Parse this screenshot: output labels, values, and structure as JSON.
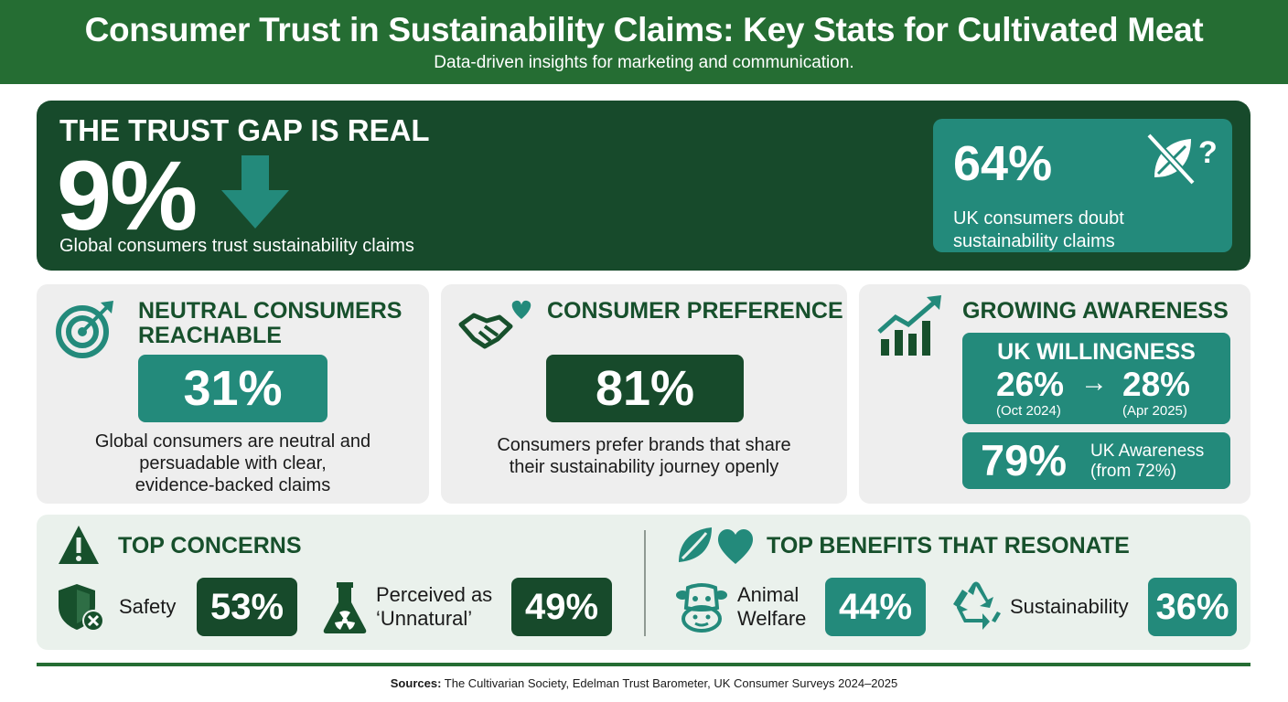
{
  "header": {
    "title": "Consumer Trust in Sustainability Claims: Key Stats for Cultivated Meat",
    "subtitle": "Data-driven insights for marketing and communication."
  },
  "trust_gap": {
    "heading": "THE TRUST GAP IS REAL",
    "stat": "9%",
    "description": "Global consumers trust sustainability claims",
    "side_stat": "64%",
    "side_description": "UK consumers doubt sustainability claims",
    "side_icon_glyph": "?"
  },
  "neutral": {
    "title_line1": "NEUTRAL CONSUMERS",
    "title_line2": "REACHABLE",
    "stat": "31%",
    "desc_line1": "Global consumers are neutral and",
    "desc_line2": "persuadable with clear,",
    "desc_line3": "evidence-backed claims"
  },
  "preference": {
    "title": "CONSUMER PREFERENCE",
    "stat": "81%",
    "desc_line1": "Consumers prefer brands that share",
    "desc_line2": "their sustainability journey openly"
  },
  "awareness": {
    "title": "GROWING AWARENESS",
    "willingness_label": "UK WILLINGNESS",
    "willingness_from": "26%",
    "arrow": "→",
    "willingness_to": "28%",
    "from_date": "(Oct 2024)",
    "to_date": "(Apr 2025)",
    "awareness_stat": "79%",
    "awareness_label": "UK Awareness",
    "awareness_note": "(from 72%)"
  },
  "concerns": {
    "title": "TOP CONCERNS",
    "items": [
      {
        "label_line1": "Safety",
        "label_line2": "",
        "value": "53%"
      },
      {
        "label_line1": "Perceived as",
        "label_line2": "‘Unnatural’",
        "value": "49%"
      }
    ]
  },
  "benefits": {
    "title": "TOP BENEFITS THAT RESONATE",
    "items": [
      {
        "label_line1": "Animal",
        "label_line2": "Welfare",
        "value": "44%"
      },
      {
        "label_line1": "Sustainability",
        "label_line2": "",
        "value": "36%"
      }
    ]
  },
  "footer": {
    "sources_label": "Sources:",
    "sources_text": " The Cultivarian Society, Edelman Trust Barometer, UK Consumer Surveys 2024–2025"
  },
  "colors": {
    "header_green": "#256d33",
    "dark_green": "#174a2b",
    "teal": "#238a7b",
    "panel_gray": "#eeeeee",
    "bottom_panel": "#eaf1ec"
  },
  "icons": [
    "down-arrow-icon",
    "leaf-crossed-question-icon",
    "target-icon",
    "handshake-heart-icon",
    "growth-chart-icon",
    "warning-icon",
    "shield-x-icon",
    "flask-radiation-icon",
    "leaf-heart-icon",
    "cow-icon",
    "recycle-icon"
  ]
}
